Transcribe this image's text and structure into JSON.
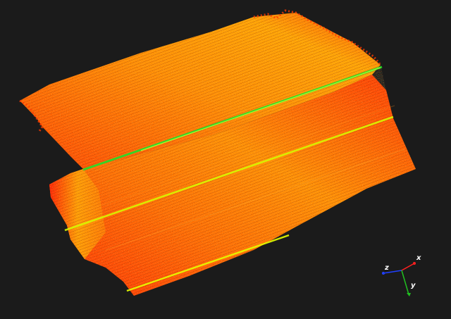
{
  "viewer": {
    "background_color": "#1b1b1b",
    "point_cloud": {
      "colormap": [
        "#ff1a00",
        "#ff4a00",
        "#ff7a00",
        "#ffa500",
        "#ffd000",
        "#c8ff00",
        "#22e02a"
      ],
      "highlight_colors": {
        "top_ridge": "#22e02a",
        "mid_ridge": "#d7ff00",
        "low_ridge": "#e6ff00"
      }
    },
    "axes_gizmo": {
      "x_label": "x",
      "y_label": "y",
      "z_label": "z",
      "x_color": "#ff2020",
      "y_color": "#20c020",
      "z_color": "#2040ff"
    }
  }
}
